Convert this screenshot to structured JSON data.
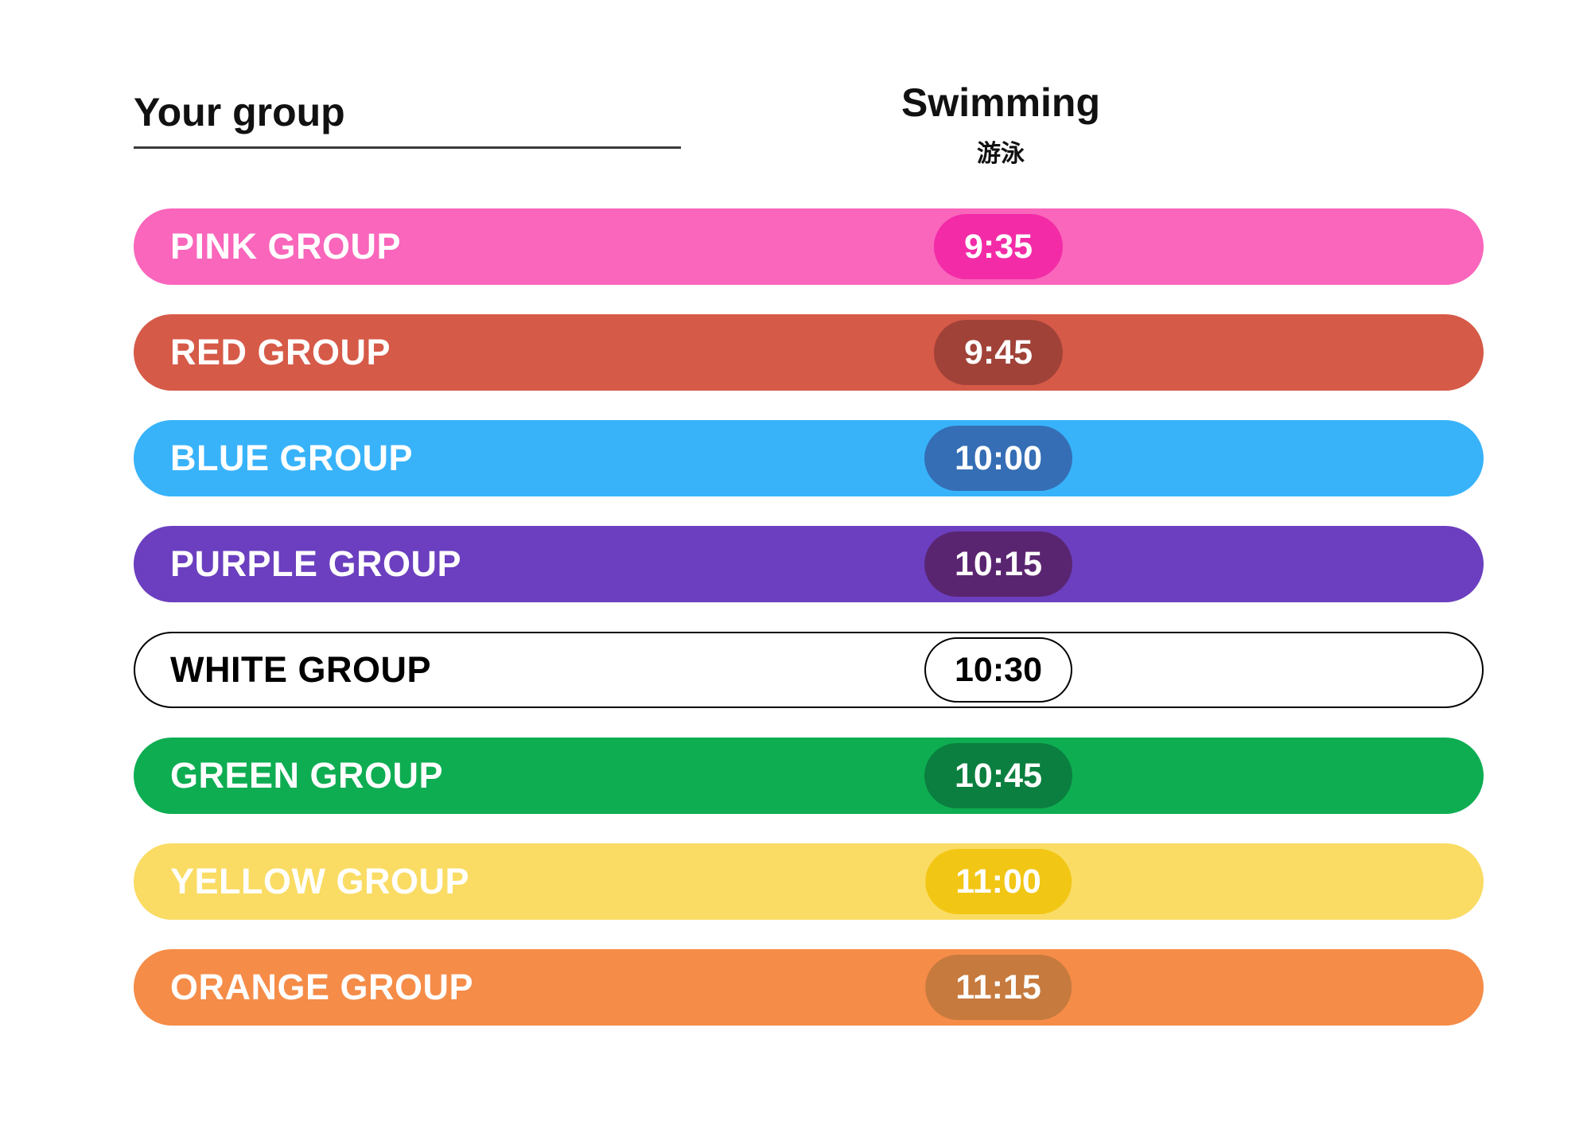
{
  "header": {
    "group_column_title": "Your group",
    "activity_title": "Swimming",
    "activity_subtitle": "游泳"
  },
  "groups": [
    {
      "label": "PINK GROUP",
      "time": "9:35",
      "bar_color": "#F966BB",
      "pill_color": "#F32BA7",
      "text_color": "#FFFFFF"
    },
    {
      "label": "RED GROUP",
      "time": "9:45",
      "bar_color": "#D65A48",
      "pill_color": "#A04238",
      "text_color": "#FFFFFF"
    },
    {
      "label": "BLUE GROUP",
      "time": "10:00",
      "bar_color": "#38B3FA",
      "pill_color": "#356EB5",
      "text_color": "#FFFFFF"
    },
    {
      "label": "PURPLE GROUP",
      "time": "10:15",
      "bar_color": "#6B3FBF",
      "pill_color": "#5A2570",
      "text_color": "#FFFFFF"
    },
    {
      "label": "WHITE GROUP",
      "time": "10:30",
      "bar_color": "#FFFFFF",
      "pill_color": "#FFFFFF",
      "text_color": "#000000",
      "border_color": "#000000"
    },
    {
      "label": "GREEN GROUP",
      "time": "10:45",
      "bar_color": "#0EAD52",
      "pill_color": "#0B7F3F",
      "text_color": "#FFFFFF"
    },
    {
      "label": "YELLOW GROUP",
      "time": "11:00",
      "bar_color": "#FADC64",
      "pill_color": "#F2C614",
      "text_color": "#FFFFFF"
    },
    {
      "label": "ORANGE GROUP",
      "time": "11:15",
      "bar_color": "#F58C48",
      "pill_color": "#C67A3E",
      "text_color": "#FFFFFF"
    }
  ]
}
